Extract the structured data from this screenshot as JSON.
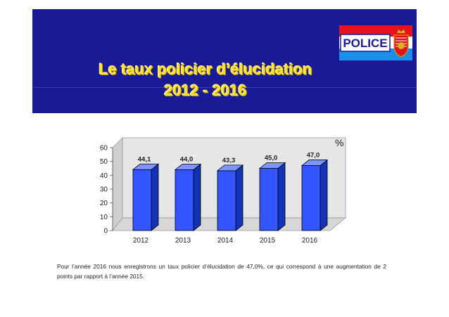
{
  "slide": {
    "title_line1": "Le taux policier d’élucidation",
    "title_line2": "2012 - 2016",
    "logo_text": "POLICE",
    "unit": "%",
    "caption": "Pour l’année 2016 nous enregistrons un taux policier d’élucidation de 47,0%, ce qui correspond à une augmentation de 2 points par rapport à l’année 2015.",
    "colors": {
      "header_bg": "#1a1a96",
      "title": "#ffe033",
      "bar": "#3355ff",
      "flag_red": "#e8101c",
      "flag_blue": "#1a8ee8"
    }
  },
  "chart_data": {
    "type": "bar",
    "categories": [
      "2012",
      "2013",
      "2014",
      "2015",
      "2016"
    ],
    "values": [
      44.1,
      44.0,
      43.3,
      45.0,
      47.0
    ],
    "value_labels": [
      "44,1",
      "44,0",
      "43,3",
      "45,0",
      "47,0"
    ],
    "yticks": [
      0,
      10,
      20,
      30,
      40,
      50,
      60
    ],
    "ylim": [
      0,
      60
    ],
    "grid": false,
    "style": "3d"
  }
}
